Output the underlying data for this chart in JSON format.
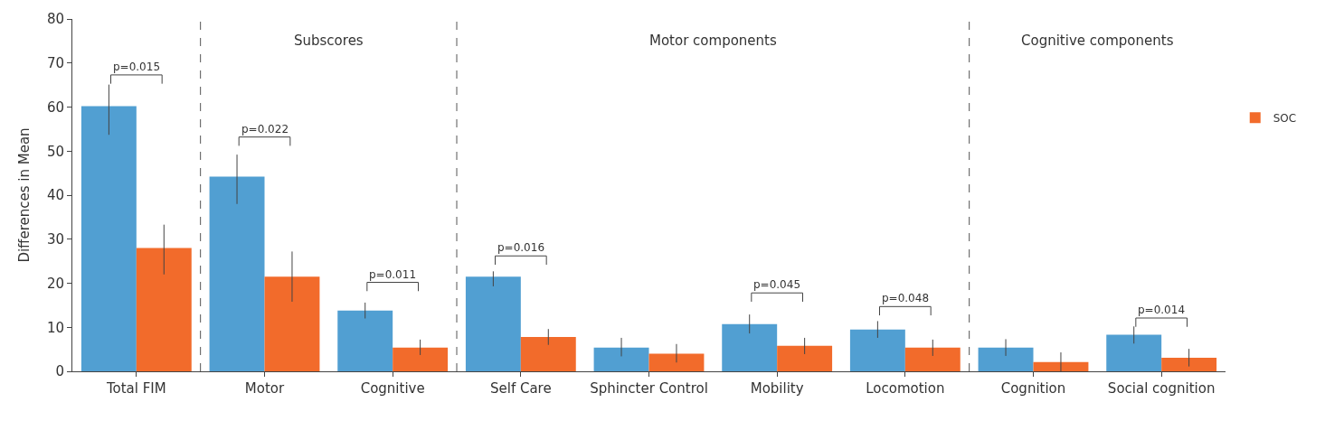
{
  "chart_data": {
    "type": "bar",
    "ylabel": "Differences in Mean",
    "categories": [
      "Total FIM",
      "Motor",
      "Cognitive",
      "Self Care",
      "Sphincter Control",
      "Mobility",
      "Locomotion",
      "Cognition",
      "Social cognition"
    ],
    "series": [
      {
        "color": "#519fd2",
        "values": [
          60.2,
          44.2,
          13.8,
          21.5,
          5.4,
          10.7,
          9.5,
          5.4,
          8.3
        ],
        "errors": [
          [
            53.7,
            65.1
          ],
          [
            38,
            49.2
          ],
          [
            12,
            15.6
          ],
          [
            19.3,
            22.7
          ],
          [
            3.4,
            7.6
          ],
          [
            8.6,
            12.9
          ],
          [
            7.6,
            11.4
          ],
          [
            3.5,
            7.3
          ],
          [
            6.3,
            10.2
          ]
        ]
      },
      {
        "name": "SOC",
        "color": "#f26b2b",
        "values": [
          28,
          21.5,
          5.4,
          7.8,
          4,
          5.8,
          5.4,
          2.1,
          3.1
        ],
        "errors": [
          [
            22,
            33.3
          ],
          [
            15.8,
            27.2
          ],
          [
            3.7,
            7.2
          ],
          [
            6,
            9.6
          ],
          [
            2,
            6.2
          ],
          [
            3.9,
            7.6
          ],
          [
            3.5,
            7.2
          ],
          [
            0,
            4.3
          ],
          [
            1.1,
            5.1
          ]
        ]
      }
    ],
    "ylim": [
      0,
      80
    ],
    "yticks": [
      0,
      10,
      20,
      30,
      40,
      50,
      60,
      70,
      80
    ],
    "legend": "right",
    "annotations": [
      "Subscores",
      "Motor components",
      "Cognitive components",
      "p=0.015",
      "p=0.022",
      "p=0.011",
      "p=0.016",
      "p=0.045",
      "p=0.048",
      "p=0.014"
    ]
  }
}
